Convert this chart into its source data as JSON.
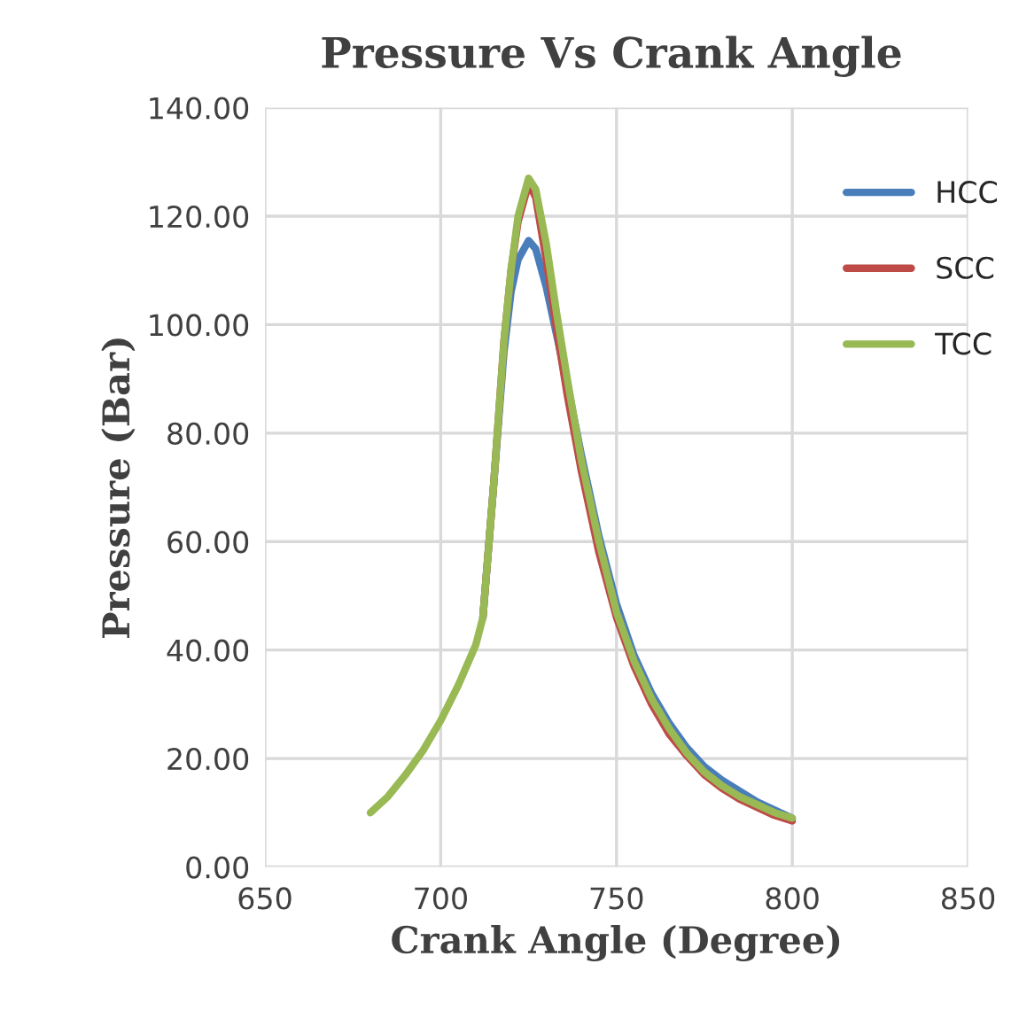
{
  "chart_data": {
    "type": "line",
    "title": "Pressure Vs Crank Angle",
    "xlabel": "Crank Angle (Degree)",
    "ylabel": "Pressure (Bar)",
    "xlim": [
      650,
      850
    ],
    "xticks": [
      650,
      700,
      750,
      800,
      850
    ],
    "ylim": [
      0,
      140
    ],
    "yticks": [
      {
        "value": 0,
        "label": "0.00"
      },
      {
        "value": 20,
        "label": "20.00"
      },
      {
        "value": 40,
        "label": "40.00"
      },
      {
        "value": 60,
        "label": "60.00"
      },
      {
        "value": 80,
        "label": "80.00"
      },
      {
        "value": 100,
        "label": "100.00"
      },
      {
        "value": 120,
        "label": "120.00"
      },
      {
        "value": 140,
        "label": "140.00"
      }
    ],
    "grid": true,
    "legend": "top right",
    "marker": "none",
    "line_style": "solid",
    "x": [
      680,
      685,
      690,
      695,
      700,
      705,
      710,
      712,
      715,
      718,
      720,
      722,
      725,
      727,
      730,
      733,
      736,
      740,
      745,
      750,
      755,
      760,
      765,
      770,
      775,
      780,
      785,
      790,
      795,
      800
    ],
    "series": [
      {
        "name": "HCC",
        "color": "#4a7ebb",
        "values": [
          null,
          null,
          null,
          null,
          null,
          null,
          null,
          46,
          70,
          95,
          106,
          112,
          115.5,
          114,
          107,
          98,
          89,
          76,
          61,
          48.5,
          39,
          32,
          26.5,
          22,
          18.5,
          16,
          14,
          12,
          10.5,
          9
        ]
      },
      {
        "name": "SCC",
        "color": "#be4b48",
        "values": [
          null,
          null,
          null,
          null,
          null,
          null,
          null,
          46,
          70,
          97,
          110,
          119,
          126,
          123.5,
          112,
          99,
          87,
          73,
          58,
          46,
          37,
          30,
          24.5,
          20.5,
          17,
          14.5,
          12.5,
          11,
          9.5,
          8.5
        ]
      },
      {
        "name": "TCC",
        "color": "#98b954",
        "values": [
          10,
          13,
          17,
          21.5,
          27,
          33.5,
          41,
          46,
          70,
          97,
          110,
          120,
          127,
          125,
          115,
          102,
          90,
          75,
          60,
          47,
          38,
          31,
          25.5,
          21,
          17.5,
          15,
          13,
          11.5,
          10,
          9
        ]
      }
    ]
  }
}
